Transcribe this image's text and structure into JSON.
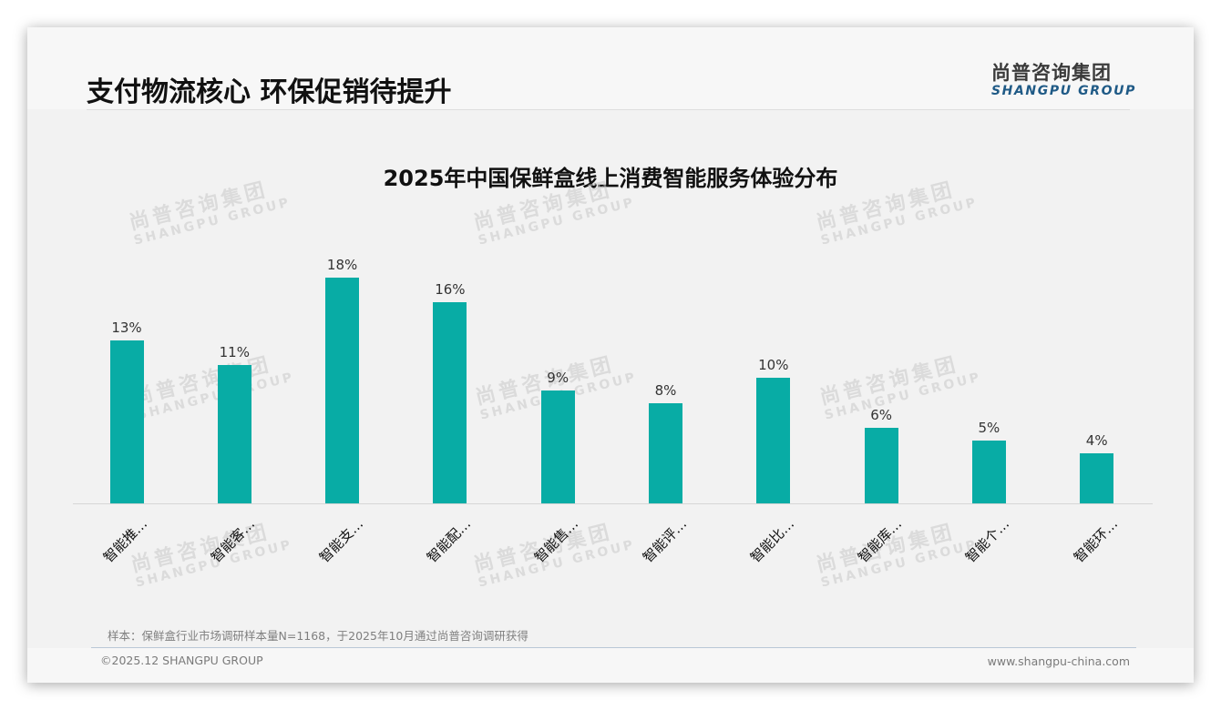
{
  "header": {
    "title": "支付物流核心 环保促销待提升",
    "logo_cn": "尚普咨询集团",
    "logo_en": "SHANGPU GROUP"
  },
  "watermark": {
    "cn": "尚普咨询集团",
    "en": "SHANGPU GROUP"
  },
  "colors": {
    "bar": "#08aca5",
    "logo_en": "#1f5a86",
    "slide_bg": "#f2f2f2"
  },
  "chart_data": {
    "type": "bar",
    "title": "2025年中国保鲜盒线上消费智能服务体验分布",
    "categories": [
      "智能推…",
      "智能客…",
      "智能支…",
      "智能配…",
      "智能售…",
      "智能评…",
      "智能比…",
      "智能库…",
      "智能个…",
      "智能环…"
    ],
    "values": [
      13,
      11,
      18,
      16,
      9,
      8,
      10,
      6,
      5,
      4
    ],
    "value_labels": [
      "13%",
      "11%",
      "18%",
      "16%",
      "9%",
      "8%",
      "10%",
      "6%",
      "5%",
      "4%"
    ],
    "unit": "%",
    "xlabel": "",
    "ylabel": "",
    "ylim": [
      0,
      20
    ],
    "grid": false,
    "legend": null,
    "x_label_rotation": -45
  },
  "footer": {
    "note": "样本：保鲜盒行业市场调研样本量N=1168，于2025年10月通过尚普咨询调研获得",
    "copyright": "©2025.12 SHANGPU GROUP",
    "website": "www.shangpu-china.com"
  }
}
